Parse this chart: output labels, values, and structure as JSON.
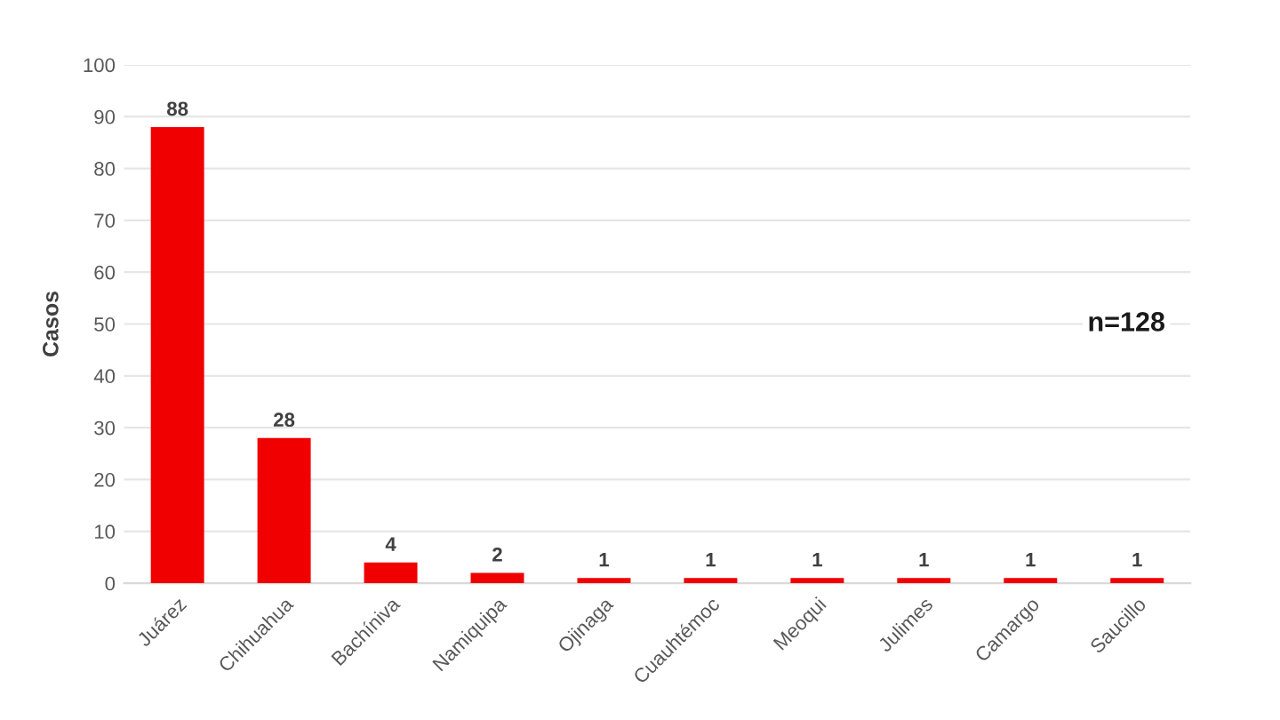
{
  "chart_data": {
    "type": "bar",
    "ylabel": "Casos",
    "categories": [
      "Juárez",
      "Chihuahua",
      "Bachíniva",
      "Namiquipa",
      "Ojinaga",
      "Cuauhtémoc",
      "Meoqui",
      "Julimes",
      "Camargo",
      "Saucillo"
    ],
    "values": [
      88,
      28,
      4,
      2,
      1,
      1,
      1,
      1,
      1,
      1
    ],
    "color": "#f00000",
    "ylim": [
      0,
      100
    ],
    "yticks": [
      0,
      10,
      20,
      30,
      40,
      50,
      60,
      70,
      80,
      90,
      100
    ],
    "grid": "y",
    "data_labels": true,
    "annotations": [
      "n=128"
    ]
  }
}
